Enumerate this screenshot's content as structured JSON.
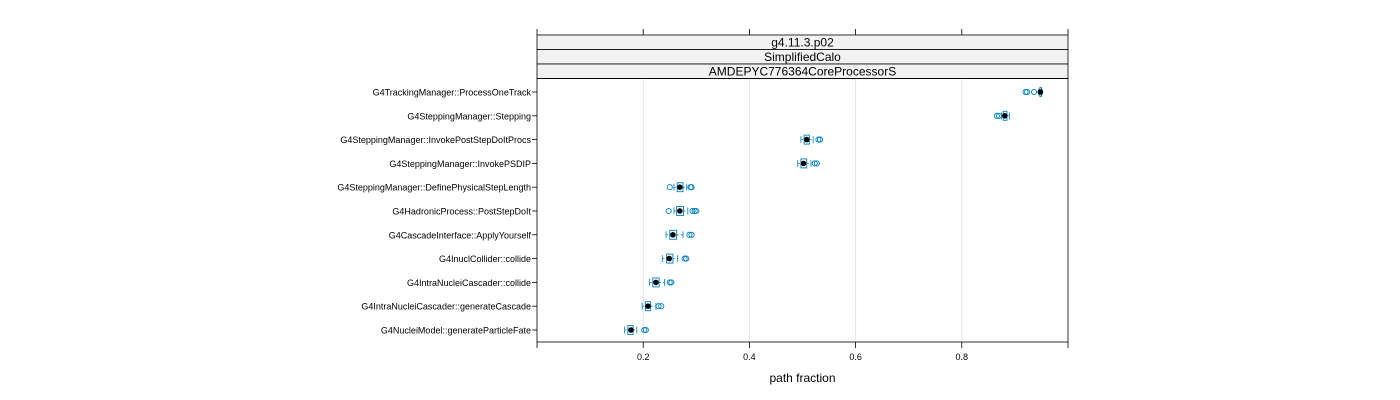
{
  "chart_data": {
    "type": "boxplot",
    "strips": [
      "g4.11.3.p02",
      "SimplifiedCalo",
      "AMDEPYC776364CoreProcessorS"
    ],
    "xlabel": "path fraction",
    "xlim": [
      0.0,
      1.0
    ],
    "xticks": [
      0.2,
      0.4,
      0.6,
      0.8
    ],
    "xtick_labels": [
      "0.2",
      "0.4",
      "0.6",
      "0.8"
    ],
    "grid": "vertical",
    "colors": {
      "box": "#0080c0",
      "median_dot": "#000000",
      "grid": "#e6e6e6",
      "strip_bg": "#f2f2f2",
      "frame": "#000000"
    },
    "categories": [
      "G4TrackingManager::ProcessOneTrack",
      "G4SteppingManager::Stepping",
      "G4SteppingManager::InvokePostStepDoItProcs",
      "G4SteppingManager::InvokePSDIP",
      "G4SteppingManager::DefinePhysicalStepLength",
      "G4HadronicProcess::PostStepDoIt",
      "G4CascadeInterface::ApplyYourself",
      "G4InuclCollider::collide",
      "G4IntraNucleiCascader::collide",
      "G4IntraNucleiCascader::generateCascade",
      "G4NucleiModel::generateParticleFate"
    ],
    "boxes": [
      {
        "whisker_low": 0.945,
        "q1": 0.947,
        "median": 0.948,
        "q3": 0.95,
        "whisker_high": 0.951,
        "outliers": [
          0.92,
          0.923,
          0.936
        ]
      },
      {
        "whisker_low": 0.875,
        "q1": 0.878,
        "median": 0.881,
        "q3": 0.885,
        "whisker_high": 0.89,
        "outliers": [
          0.866,
          0.87
        ]
      },
      {
        "whisker_low": 0.497,
        "q1": 0.503,
        "median": 0.508,
        "q3": 0.513,
        "whisker_high": 0.52,
        "outliers": [
          0.53,
          0.533
        ]
      },
      {
        "whisker_low": 0.491,
        "q1": 0.497,
        "median": 0.502,
        "q3": 0.508,
        "whisker_high": 0.516,
        "outliers": [
          0.523,
          0.527
        ]
      },
      {
        "whisker_low": 0.258,
        "q1": 0.264,
        "median": 0.269,
        "q3": 0.275,
        "whisker_high": 0.282,
        "outliers": [
          0.25,
          0.289,
          0.291
        ]
      },
      {
        "whisker_low": 0.258,
        "q1": 0.263,
        "median": 0.269,
        "q3": 0.276,
        "whisker_high": 0.284,
        "outliers": [
          0.248,
          0.293,
          0.297,
          0.3
        ]
      },
      {
        "whisker_low": 0.243,
        "q1": 0.25,
        "median": 0.256,
        "q3": 0.263,
        "whisker_high": 0.275,
        "outliers": [
          0.287,
          0.291
        ]
      },
      {
        "whisker_low": 0.236,
        "q1": 0.244,
        "median": 0.249,
        "q3": 0.256,
        "whisker_high": 0.265,
        "outliers": [
          0.278,
          0.281
        ]
      },
      {
        "whisker_low": 0.212,
        "q1": 0.218,
        "median": 0.224,
        "q3": 0.23,
        "whisker_high": 0.24,
        "outliers": [
          0.25,
          0.253
        ]
      },
      {
        "whisker_low": 0.198,
        "q1": 0.204,
        "median": 0.209,
        "q3": 0.214,
        "whisker_high": 0.224,
        "outliers": [
          0.229,
          0.234
        ]
      },
      {
        "whisker_low": 0.165,
        "q1": 0.171,
        "median": 0.177,
        "q3": 0.181,
        "whisker_high": 0.188,
        "outliers": [
          0.202,
          0.205
        ]
      }
    ]
  }
}
